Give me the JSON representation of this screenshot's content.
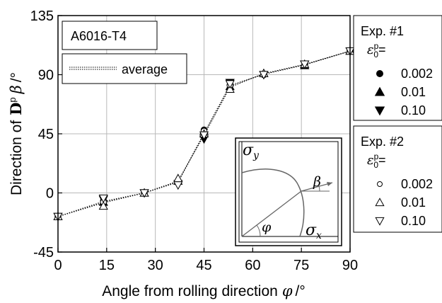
{
  "chart_data": {
    "type": "line",
    "xlabel_text": "Angle from rolling direction",
    "xlabel_symbol": "φ",
    "xlabel_unit": "/°",
    "ylabel_text": "Direction of",
    "ylabel_bold": "D",
    "ylabel_sup": "p",
    "ylabel_symbol": "β",
    "ylabel_unit": "/°",
    "xlim": [
      0,
      90
    ],
    "ylim": [
      -45,
      135
    ],
    "xticks": [
      0,
      15,
      30,
      45,
      60,
      75,
      90
    ],
    "yticks": [
      -45,
      0,
      45,
      90,
      135
    ],
    "grid": true,
    "material_label": "A6016-T4",
    "average_label": "average",
    "legend1": {
      "title": "Exp. #1",
      "eps_symbol": "ε",
      "eps_sup": "p",
      "eps_sub": "0",
      "eps_suffix": "=",
      "entries": [
        {
          "label": "0.002",
          "marker": "filled-circle"
        },
        {
          "label": "0.01",
          "marker": "filled-triangle-up"
        },
        {
          "label": "0.10",
          "marker": "filled-triangle-down"
        }
      ]
    },
    "legend2": {
      "title": "Exp. #2",
      "eps_symbol": "ε",
      "eps_sup": "p",
      "eps_sub": "0",
      "eps_suffix": "=",
      "entries": [
        {
          "label": "0.002",
          "marker": "open-circle"
        },
        {
          "label": "0.01",
          "marker": "open-triangle-up"
        },
        {
          "label": "0.10",
          "marker": "open-triangle-down"
        }
      ]
    },
    "inset": {
      "sigma_y": "σ",
      "sigma_y_sub": "y",
      "sigma_x": "σ",
      "sigma_x_sub": "x",
      "phi": "φ",
      "beta": "β"
    },
    "series": [
      {
        "marker": "filled-circle",
        "x": [
          0,
          14,
          26.6,
          37,
          45,
          53,
          63.4,
          76,
          90
        ],
        "y": [
          -18,
          -6,
          0,
          8,
          48,
          82,
          90,
          97,
          108
        ]
      },
      {
        "marker": "filled-triangle-up",
        "x": [
          0,
          14,
          26.6,
          37,
          45,
          53,
          63.4,
          76,
          90
        ],
        "y": [
          -18,
          -7,
          0,
          9,
          47,
          81,
          91,
          97,
          108
        ]
      },
      {
        "marker": "filled-triangle-down",
        "x": [
          0,
          14,
          26.6,
          37,
          45,
          53,
          63.4,
          76,
          90
        ],
        "y": [
          -18,
          -5,
          0,
          7,
          41,
          84,
          90,
          98,
          108
        ]
      },
      {
        "marker": "open-circle",
        "x": [
          0,
          14,
          26.6,
          37,
          45,
          53,
          63.4,
          76,
          90
        ],
        "y": [
          -18,
          -7,
          0,
          8,
          47,
          82,
          90,
          97,
          108
        ]
      },
      {
        "marker": "open-triangle-up",
        "x": [
          0,
          14,
          26.6,
          37,
          45,
          53,
          63.4,
          76,
          90
        ],
        "y": [
          -18,
          -10,
          0,
          11,
          45,
          79,
          91,
          98,
          108
        ]
      },
      {
        "marker": "open-triangle-down",
        "x": [
          0,
          14,
          26.6,
          37,
          45,
          53,
          63.4,
          76,
          90
        ],
        "y": [
          -18,
          -4,
          0,
          6,
          44,
          83,
          90,
          98,
          108
        ]
      }
    ],
    "average_line": {
      "x": [
        0,
        14,
        26.6,
        37,
        45,
        53,
        63.4,
        76,
        90
      ],
      "y": [
        -18,
        -6.5,
        0,
        8.2,
        45.5,
        81.8,
        90.3,
        97.5,
        108
      ]
    },
    "average_line_2": {
      "x": [
        0,
        14,
        26.6,
        37,
        45,
        53,
        63.4,
        76,
        90
      ],
      "y": [
        -18,
        -7.5,
        0,
        9,
        44,
        80.5,
        90.8,
        97.8,
        108
      ]
    }
  }
}
